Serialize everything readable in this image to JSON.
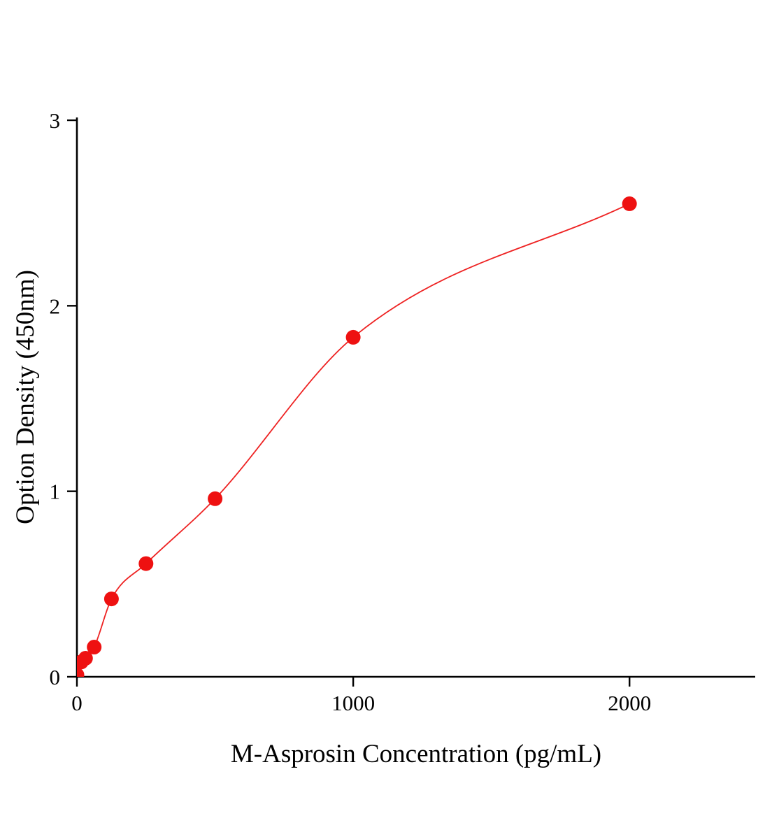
{
  "chart_data": {
    "type": "scatter",
    "title": "",
    "xlabel": "M-Asprosin Concentration (pg/mL)",
    "ylabel": "Option Density (450nm)",
    "x_unit": "pg/mL",
    "y_unit": "OD 450nm",
    "x": [
      0,
      15.6,
      31.2,
      62.5,
      125,
      250,
      500,
      1000,
      2000
    ],
    "y": [
      0.01,
      0.08,
      0.1,
      0.16,
      0.42,
      0.61,
      0.96,
      1.83,
      2.55
    ],
    "fit_curve": true,
    "xlim": [
      0,
      2455
    ],
    "ylim": [
      0,
      3
    ],
    "x_ticks": [
      0,
      1000,
      2000
    ],
    "y_ticks": [
      0,
      1,
      2,
      3
    ],
    "grid": false,
    "legend": "none",
    "marker_color": "#ee1111",
    "curve_color": "#ee2222",
    "axis_color": "#000000"
  }
}
